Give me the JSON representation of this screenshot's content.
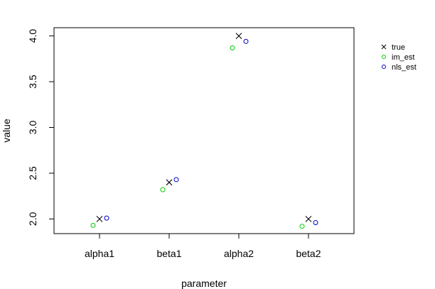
{
  "chart_data": {
    "type": "scatter",
    "xlabel": "parameter",
    "ylabel": "value",
    "ylim": [
      1.84,
      4.09
    ],
    "categories": [
      "alpha1",
      "beta1",
      "alpha2",
      "beta2"
    ],
    "yticks": [
      "2.0",
      "2.5",
      "3.0",
      "3.5",
      "4.0"
    ],
    "grid": false,
    "legend_position": "right",
    "series": [
      {
        "name": "true",
        "symbol": "x",
        "color": "#000000",
        "values": [
          2.0,
          2.4,
          4.0,
          2.0
        ]
      },
      {
        "name": "im_est",
        "symbol": "circle",
        "color": "#00cc00",
        "values": [
          1.93,
          2.32,
          3.87,
          1.92
        ]
      },
      {
        "name": "nls_est",
        "symbol": "circle",
        "color": "#0000cc",
        "values": [
          2.01,
          2.43,
          3.94,
          1.96
        ]
      }
    ]
  }
}
